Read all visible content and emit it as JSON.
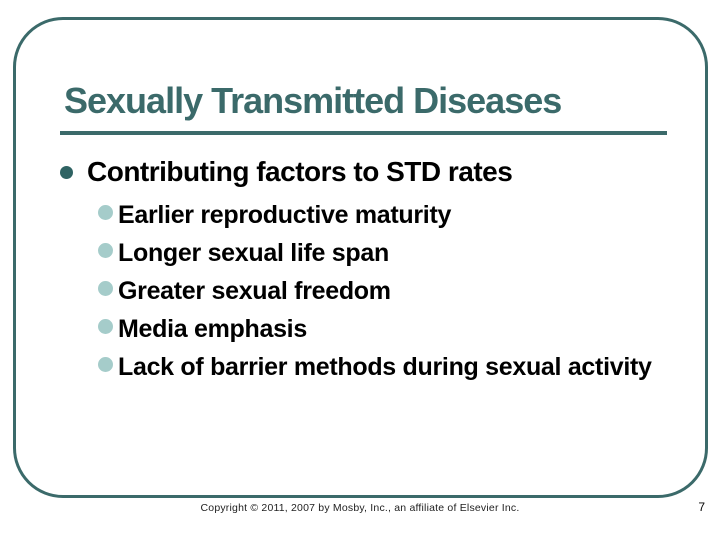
{
  "slide": {
    "title": "Sexually Transmitted Diseases",
    "bullets": {
      "level1": "Contributing factors to STD rates",
      "level2": [
        "Earlier reproductive maturity",
        "Longer sexual life span",
        "Greater sexual freedom",
        "Media emphasis",
        "Lack of barrier methods during sexual activity"
      ]
    },
    "footer": {
      "copyright": "Copyright © 2011, 2007 by Mosby, Inc., an affiliate of Elsevier Inc.",
      "page_number": "7"
    },
    "colors": {
      "accent_teal": "#3b6a6a",
      "level1_dot": "#2f6363",
      "level2_dot": "#a5ccca",
      "text": "#000000",
      "background": "#ffffff"
    }
  }
}
